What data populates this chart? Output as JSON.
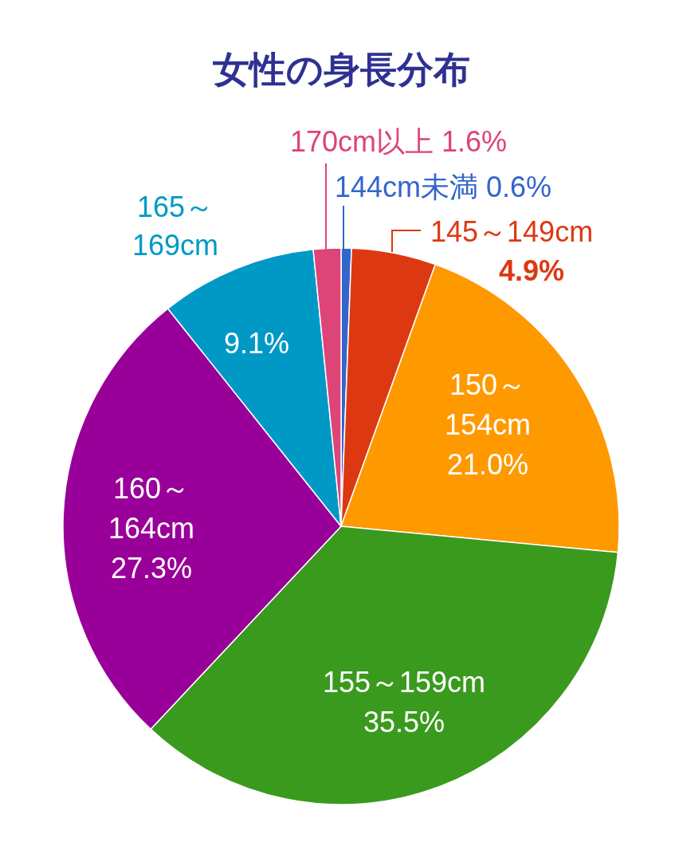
{
  "chart_data": {
    "type": "pie",
    "title": "女性の身長分布",
    "categories": [
      "144cm未満",
      "145～149cm",
      "150～154cm",
      "155～159cm",
      "160～164cm",
      "165～169cm",
      "170cm以上"
    ],
    "values": [
      0.6,
      4.9,
      21.0,
      35.5,
      27.3,
      9.1,
      1.6
    ],
    "value_labels": [
      "0.6%",
      "4.9%",
      "21.0%",
      "35.5%",
      "27.3%",
      "9.1%",
      "1.6%"
    ],
    "colors": [
      "#3366cc",
      "#dc3912",
      "#ff9900",
      "#3a9a1e",
      "#990099",
      "#0099c6",
      "#dd4477"
    ]
  }
}
